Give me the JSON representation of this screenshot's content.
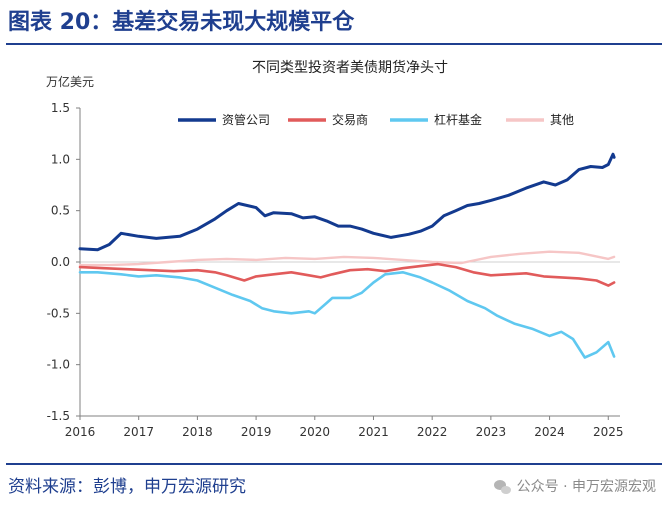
{
  "figure_title": "图表 20：基差交易未现大规模平仓",
  "source_text": "资料来源：彭博，申万宏源研究",
  "watermark_text": "公众号 · 申万宏源宏观",
  "colors": {
    "brand": "#1f3f8f",
    "series_1": "#133a8f",
    "series_2": "#e15b5b",
    "series_3": "#5fc8f0",
    "series_4": "#f6c6c6"
  },
  "chart_data": {
    "type": "line",
    "title": "不同类型投资者美债期货净头寸",
    "ylabel": "万亿美元",
    "xlabel": "",
    "xlim": [
      2016,
      2025.2
    ],
    "ylim": [
      -1.5,
      1.5
    ],
    "xticks": [
      "2016",
      "2017",
      "2018",
      "2019",
      "2020",
      "2021",
      "2022",
      "2023",
      "2024",
      "2025"
    ],
    "yticks": [
      "1.5",
      "1.0",
      "0.5",
      "0.0",
      "-0.5",
      "-1.0",
      "-1.5"
    ],
    "legend_position": "top",
    "series": [
      {
        "name": "资管公司",
        "x": [
          2016.0,
          2016.3,
          2016.5,
          2016.7,
          2017.0,
          2017.3,
          2017.7,
          2018.0,
          2018.3,
          2018.5,
          2018.7,
          2019.0,
          2019.15,
          2019.3,
          2019.6,
          2019.8,
          2020.0,
          2020.2,
          2020.4,
          2020.6,
          2020.8,
          2021.0,
          2021.3,
          2021.6,
          2021.8,
          2022.0,
          2022.2,
          2022.4,
          2022.6,
          2022.8,
          2023.0,
          2023.3,
          2023.6,
          2023.9,
          2024.1,
          2024.3,
          2024.5,
          2024.7,
          2024.9,
          2025.0,
          2025.08,
          2025.1
        ],
        "values": [
          0.13,
          0.12,
          0.17,
          0.28,
          0.25,
          0.23,
          0.25,
          0.32,
          0.42,
          0.5,
          0.57,
          0.53,
          0.45,
          0.48,
          0.47,
          0.43,
          0.44,
          0.4,
          0.35,
          0.35,
          0.32,
          0.28,
          0.24,
          0.27,
          0.3,
          0.35,
          0.45,
          0.5,
          0.55,
          0.57,
          0.6,
          0.65,
          0.72,
          0.78,
          0.75,
          0.8,
          0.9,
          0.93,
          0.92,
          0.95,
          1.05,
          1.02
        ]
      },
      {
        "name": "交易商",
        "x": [
          2016.0,
          2016.4,
          2016.8,
          2017.2,
          2017.6,
          2018.0,
          2018.3,
          2018.5,
          2018.8,
          2019.0,
          2019.3,
          2019.6,
          2019.9,
          2020.1,
          2020.3,
          2020.6,
          2020.9,
          2021.2,
          2021.5,
          2021.8,
          2022.1,
          2022.4,
          2022.7,
          2023.0,
          2023.3,
          2023.6,
          2023.9,
          2024.2,
          2024.5,
          2024.8,
          2025.0,
          2025.1
        ],
        "values": [
          -0.05,
          -0.06,
          -0.07,
          -0.08,
          -0.09,
          -0.08,
          -0.1,
          -0.13,
          -0.18,
          -0.14,
          -0.12,
          -0.1,
          -0.13,
          -0.15,
          -0.12,
          -0.08,
          -0.07,
          -0.09,
          -0.06,
          -0.04,
          -0.02,
          -0.05,
          -0.1,
          -0.13,
          -0.12,
          -0.11,
          -0.14,
          -0.15,
          -0.16,
          -0.18,
          -0.23,
          -0.2
        ]
      },
      {
        "name": "杠杆基金",
        "x": [
          2016.0,
          2016.3,
          2016.7,
          2017.0,
          2017.3,
          2017.7,
          2018.0,
          2018.3,
          2018.6,
          2018.9,
          2019.1,
          2019.3,
          2019.6,
          2019.9,
          2020.0,
          2020.2,
          2020.3,
          2020.6,
          2020.8,
          2021.0,
          2021.2,
          2021.5,
          2021.8,
          2022.0,
          2022.3,
          2022.6,
          2022.9,
          2023.1,
          2023.4,
          2023.7,
          2024.0,
          2024.2,
          2024.4,
          2024.6,
          2024.8,
          2025.0,
          2025.1
        ],
        "values": [
          -0.1,
          -0.1,
          -0.12,
          -0.14,
          -0.13,
          -0.15,
          -0.18,
          -0.25,
          -0.32,
          -0.38,
          -0.45,
          -0.48,
          -0.5,
          -0.48,
          -0.5,
          -0.4,
          -0.35,
          -0.35,
          -0.3,
          -0.2,
          -0.12,
          -0.1,
          -0.15,
          -0.2,
          -0.28,
          -0.38,
          -0.45,
          -0.52,
          -0.6,
          -0.65,
          -0.72,
          -0.68,
          -0.75,
          -0.93,
          -0.88,
          -0.78,
          -0.92
        ]
      },
      {
        "name": "其他",
        "x": [
          2016.0,
          2016.5,
          2017.0,
          2017.5,
          2018.0,
          2018.5,
          2019.0,
          2019.5,
          2020.0,
          2020.5,
          2021.0,
          2021.5,
          2022.0,
          2022.5,
          2023.0,
          2023.5,
          2024.0,
          2024.5,
          2025.0,
          2025.1
        ],
        "values": [
          -0.03,
          -0.03,
          -0.02,
          0.0,
          0.02,
          0.03,
          0.02,
          0.04,
          0.03,
          0.05,
          0.04,
          0.02,
          0.0,
          -0.01,
          0.05,
          0.08,
          0.1,
          0.09,
          0.03,
          0.05
        ]
      }
    ]
  }
}
